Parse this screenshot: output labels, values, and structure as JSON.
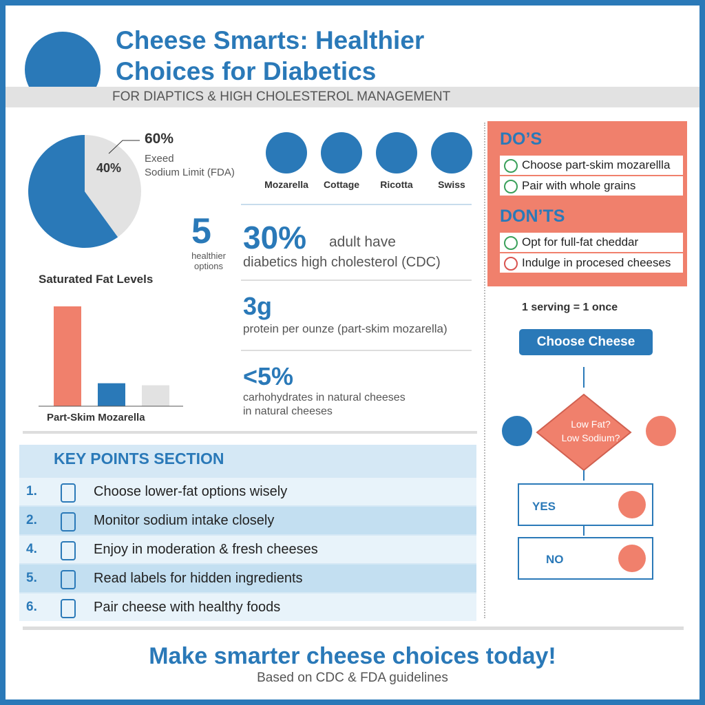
{
  "header": {
    "title": "Cheese Smarts: Healthier\nChoices for Diabetics",
    "subtitle": "FOR DIAPTICS & HIGH CHOLESTEROL MANAGEMENT"
  },
  "pie_chart": {
    "type": "pie",
    "values": [
      60,
      40
    ],
    "value_labels": [
      "60%",
      "40%"
    ],
    "colors": [
      "#2a79b8",
      "#e2e2e2"
    ],
    "annotation": "Exeed\nSodium Limit (FDA)"
  },
  "bar_chart": {
    "type": "bar",
    "title": "Saturated Fat Levels",
    "xlabel": "Part-Skim Mozarella",
    "values": [
      100,
      23,
      21
    ],
    "colors": [
      "#f0806c",
      "#2a79b8",
      "#e2e2e2"
    ],
    "ylim": [
      0,
      100
    ]
  },
  "cheeses": [
    "Mozarella",
    "Cottage",
    "Ricotta",
    "Swiss"
  ],
  "options": {
    "count": 5,
    "label": "healthier\noptions"
  },
  "stats": [
    {
      "value": "30%",
      "label": "adult have",
      "detail": "diabetics high cholesterol (CDC)"
    },
    {
      "value": "3g",
      "detail": "protein per ounze (part-skim mozarella)"
    },
    {
      "value": "<5%",
      "detail": "carhohydrates in natural cheeses\nin natural cheeses"
    }
  ],
  "dos": {
    "title": "DO’S",
    "items": [
      "Choose part-skim mozarellla",
      "Pair with whole grains"
    ]
  },
  "donts": {
    "title": "DON’TS",
    "items": [
      "Opt for full-fat cheddar",
      "Indulge in procesed cheeses"
    ]
  },
  "key_points": {
    "title": "KEY POINTS SECTION",
    "items": [
      {
        "number": "1.",
        "text": "Choose lower-fat options wisely"
      },
      {
        "number": "2.",
        "text": "Monitor sodium intake closely"
      },
      {
        "number": "4.",
        "text": "Enjoy in moderation & fresh cheeses"
      },
      {
        "number": "5.",
        "text": "Read labels for hidden ingredients"
      },
      {
        "number": "6.",
        "text": "Pair cheese with healthy foods"
      }
    ]
  },
  "flow": {
    "serving": "1 serving = 1 once",
    "start": "Choose Cheese",
    "decision": "Low Fat?\nLow Sodium?",
    "yes": "YES",
    "no": "NO"
  },
  "footer": {
    "cta": "Make smarter cheese choices today!",
    "source": "Based on CDC & FDA guidelines"
  }
}
